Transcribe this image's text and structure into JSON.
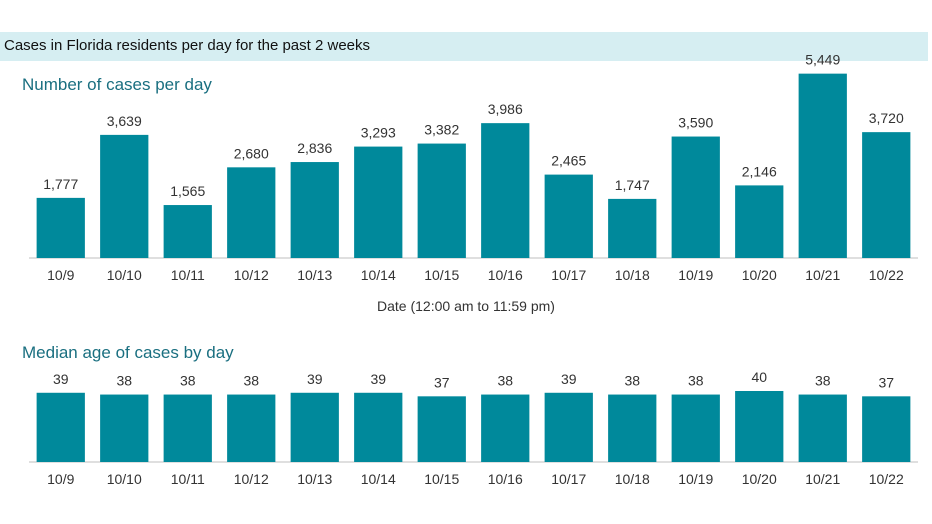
{
  "header": {
    "title": "Cases in Florida residents per day for the past 2 weeks"
  },
  "colors": {
    "bar": "#00899b",
    "title": "#1a6f80",
    "header_bg": "#d6eef2",
    "text": "#333333"
  },
  "chart_data": [
    {
      "type": "bar",
      "title": "Number of cases per day",
      "xlabel": "Date (12:00 am to 11:59 pm)",
      "ylabel": "",
      "categories": [
        "10/9",
        "10/10",
        "10/11",
        "10/12",
        "10/13",
        "10/14",
        "10/15",
        "10/16",
        "10/17",
        "10/18",
        "10/19",
        "10/20",
        "10/21",
        "10/22"
      ],
      "values": [
        1777,
        3639,
        1565,
        2680,
        2836,
        3293,
        3382,
        3986,
        2465,
        1747,
        3590,
        2146,
        5449,
        3720
      ],
      "value_labels": [
        "1,777",
        "3,639",
        "1,565",
        "2,680",
        "2,836",
        "3,293",
        "3,382",
        "3,986",
        "2,465",
        "1,747",
        "3,590",
        "2,146",
        "5,449",
        "3,720"
      ],
      "ylim": [
        0,
        6000
      ],
      "grid": false
    },
    {
      "type": "bar",
      "title": "Median age of cases by day",
      "xlabel": "",
      "ylabel": "",
      "categories": [
        "10/9",
        "10/10",
        "10/11",
        "10/12",
        "10/13",
        "10/14",
        "10/15",
        "10/16",
        "10/17",
        "10/18",
        "10/19",
        "10/20",
        "10/21",
        "10/22"
      ],
      "values": [
        39,
        38,
        38,
        38,
        39,
        39,
        37,
        38,
        39,
        38,
        38,
        40,
        38,
        37
      ],
      "value_labels": [
        "39",
        "38",
        "38",
        "38",
        "39",
        "39",
        "37",
        "38",
        "39",
        "38",
        "38",
        "40",
        "38",
        "37"
      ],
      "ylim": [
        0,
        40
      ],
      "grid": false
    }
  ]
}
